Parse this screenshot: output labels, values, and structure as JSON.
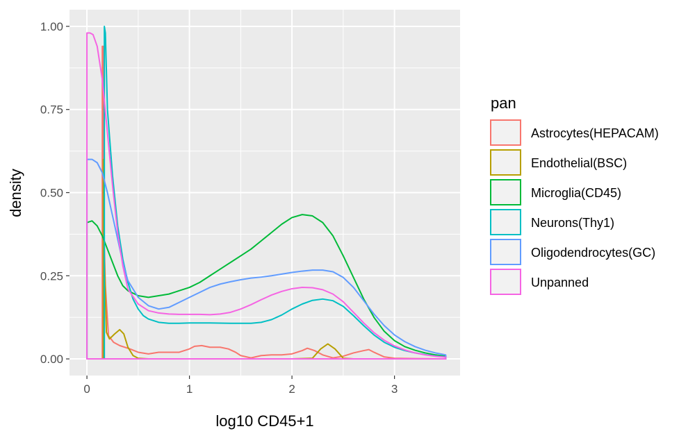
{
  "chart_data": {
    "type": "line",
    "xlabel": "log10 CD45+1",
    "ylabel": "density",
    "xlim": [
      -0.17,
      3.64
    ],
    "ylim": [
      -0.05,
      1.05
    ],
    "x_ticks": [
      0,
      1,
      2,
      3
    ],
    "x_tick_labels": [
      "0",
      "1",
      "2",
      "3"
    ],
    "y_ticks": [
      0,
      0.25,
      0.5,
      0.75,
      1.0
    ],
    "y_tick_labels": [
      "0.00",
      "0.25",
      "0.50",
      "0.75",
      "1.00"
    ],
    "grid": true,
    "panel_background": "#ebebeb",
    "legend": {
      "title": "pan",
      "position": "right",
      "entries": [
        "Astrocytes(HEPACAM)",
        "Endothelial(BSC)",
        "Microglia(CD45)",
        "Neurons(Thy1)",
        "Oligodendrocytes(GC)",
        "Unpanned"
      ]
    },
    "series": [
      {
        "name": "Astrocytes(HEPACAM)",
        "color": "#F8766D",
        "points": [
          [
            0.15,
            0
          ],
          [
            0.15,
            0.94
          ],
          [
            0.16,
            0.94
          ],
          [
            0.16,
            0.45
          ],
          [
            0.18,
            0.22
          ],
          [
            0.21,
            0.07
          ],
          [
            0.26,
            0.05
          ],
          [
            0.32,
            0.04
          ],
          [
            0.42,
            0.03
          ],
          [
            0.5,
            0.02
          ],
          [
            0.6,
            0.015
          ],
          [
            0.7,
            0.02
          ],
          [
            0.8,
            0.02
          ],
          [
            0.9,
            0.02
          ],
          [
            1.0,
            0.03
          ],
          [
            1.05,
            0.038
          ],
          [
            1.12,
            0.04
          ],
          [
            1.2,
            0.035
          ],
          [
            1.3,
            0.035
          ],
          [
            1.38,
            0.03
          ],
          [
            1.45,
            0.02
          ],
          [
            1.5,
            0.01
          ],
          [
            1.6,
            0.003
          ],
          [
            1.7,
            0.01
          ],
          [
            1.8,
            0.012
          ],
          [
            1.9,
            0.012
          ],
          [
            2.0,
            0.015
          ],
          [
            2.1,
            0.025
          ],
          [
            2.15,
            0.032
          ],
          [
            2.22,
            0.025
          ],
          [
            2.3,
            0.012
          ],
          [
            2.4,
            0.003
          ],
          [
            2.5,
            0.008
          ],
          [
            2.6,
            0.018
          ],
          [
            2.7,
            0.025
          ],
          [
            2.75,
            0.028
          ],
          [
            2.8,
            0.02
          ],
          [
            2.9,
            0.006
          ],
          [
            3.0,
            0.002
          ],
          [
            3.2,
            0.001
          ],
          [
            3.5,
            0
          ]
        ]
      },
      {
        "name": "Endothelial(BSC)",
        "color": "#B79F00",
        "points": [
          [
            0.16,
            0
          ],
          [
            0.16,
            0.6
          ],
          [
            0.17,
            0.3
          ],
          [
            0.19,
            0.08
          ],
          [
            0.22,
            0.06
          ],
          [
            0.27,
            0.075
          ],
          [
            0.32,
            0.088
          ],
          [
            0.36,
            0.075
          ],
          [
            0.4,
            0.035
          ],
          [
            0.45,
            0.01
          ],
          [
            0.5,
            0.002
          ],
          [
            0.6,
            0
          ],
          [
            1.0,
            0
          ],
          [
            1.5,
            0
          ],
          [
            2.0,
            0
          ],
          [
            2.2,
            0.002
          ],
          [
            2.28,
            0.03
          ],
          [
            2.35,
            0.045
          ],
          [
            2.42,
            0.03
          ],
          [
            2.5,
            0.002
          ],
          [
            2.6,
            0
          ],
          [
            3.5,
            0
          ]
        ]
      },
      {
        "name": "Microglia(CD45)",
        "color": "#00BA38",
        "points": [
          [
            0.0,
            0
          ],
          [
            0.0,
            0.41
          ],
          [
            0.05,
            0.415
          ],
          [
            0.1,
            0.4
          ],
          [
            0.15,
            0.37
          ],
          [
            0.2,
            0.33
          ],
          [
            0.25,
            0.29
          ],
          [
            0.3,
            0.25
          ],
          [
            0.35,
            0.22
          ],
          [
            0.4,
            0.205
          ],
          [
            0.5,
            0.19
          ],
          [
            0.6,
            0.185
          ],
          [
            0.7,
            0.19
          ],
          [
            0.8,
            0.195
          ],
          [
            0.9,
            0.205
          ],
          [
            1.0,
            0.215
          ],
          [
            1.1,
            0.23
          ],
          [
            1.2,
            0.25
          ],
          [
            1.3,
            0.27
          ],
          [
            1.4,
            0.29
          ],
          [
            1.5,
            0.31
          ],
          [
            1.6,
            0.33
          ],
          [
            1.7,
            0.355
          ],
          [
            1.8,
            0.38
          ],
          [
            1.9,
            0.405
          ],
          [
            2.0,
            0.425
          ],
          [
            2.1,
            0.434
          ],
          [
            2.2,
            0.43
          ],
          [
            2.3,
            0.41
          ],
          [
            2.4,
            0.37
          ],
          [
            2.5,
            0.31
          ],
          [
            2.6,
            0.245
          ],
          [
            2.7,
            0.18
          ],
          [
            2.8,
            0.125
          ],
          [
            2.9,
            0.083
          ],
          [
            3.0,
            0.055
          ],
          [
            3.1,
            0.037
          ],
          [
            3.2,
            0.026
          ],
          [
            3.3,
            0.018
          ],
          [
            3.4,
            0.012
          ],
          [
            3.5,
            0.008
          ]
        ]
      },
      {
        "name": "Neurons(Thy1)",
        "color": "#00BFC4",
        "points": [
          [
            0.17,
            0
          ],
          [
            0.17,
            1.0
          ],
          [
            0.18,
            0.98
          ],
          [
            0.2,
            0.75
          ],
          [
            0.25,
            0.55
          ],
          [
            0.3,
            0.4
          ],
          [
            0.35,
            0.3
          ],
          [
            0.4,
            0.23
          ],
          [
            0.45,
            0.18
          ],
          [
            0.5,
            0.15
          ],
          [
            0.55,
            0.13
          ],
          [
            0.6,
            0.12
          ],
          [
            0.7,
            0.11
          ],
          [
            0.8,
            0.107
          ],
          [
            0.9,
            0.107
          ],
          [
            1.0,
            0.108
          ],
          [
            1.2,
            0.108
          ],
          [
            1.4,
            0.107
          ],
          [
            1.6,
            0.107
          ],
          [
            1.7,
            0.11
          ],
          [
            1.8,
            0.118
          ],
          [
            1.9,
            0.132
          ],
          [
            2.0,
            0.15
          ],
          [
            2.1,
            0.165
          ],
          [
            2.2,
            0.176
          ],
          [
            2.3,
            0.18
          ],
          [
            2.4,
            0.175
          ],
          [
            2.5,
            0.158
          ],
          [
            2.6,
            0.13
          ],
          [
            2.7,
            0.1
          ],
          [
            2.8,
            0.072
          ],
          [
            2.9,
            0.05
          ],
          [
            3.0,
            0.035
          ],
          [
            3.1,
            0.025
          ],
          [
            3.2,
            0.018
          ],
          [
            3.3,
            0.013
          ],
          [
            3.4,
            0.009
          ],
          [
            3.5,
            0.006
          ]
        ]
      },
      {
        "name": "Oligodendrocytes(GC)",
        "color": "#619CFF",
        "points": [
          [
            0.0,
            0
          ],
          [
            0.0,
            0.6
          ],
          [
            0.05,
            0.6
          ],
          [
            0.1,
            0.59
          ],
          [
            0.15,
            0.56
          ],
          [
            0.2,
            0.5
          ],
          [
            0.25,
            0.43
          ],
          [
            0.3,
            0.36
          ],
          [
            0.35,
            0.29
          ],
          [
            0.4,
            0.235
          ],
          [
            0.5,
            0.185
          ],
          [
            0.6,
            0.16
          ],
          [
            0.7,
            0.15
          ],
          [
            0.8,
            0.155
          ],
          [
            0.9,
            0.17
          ],
          [
            1.0,
            0.185
          ],
          [
            1.1,
            0.2
          ],
          [
            1.2,
            0.215
          ],
          [
            1.3,
            0.225
          ],
          [
            1.4,
            0.232
          ],
          [
            1.5,
            0.238
          ],
          [
            1.6,
            0.243
          ],
          [
            1.7,
            0.246
          ],
          [
            1.8,
            0.25
          ],
          [
            1.9,
            0.255
          ],
          [
            2.0,
            0.26
          ],
          [
            2.1,
            0.264
          ],
          [
            2.2,
            0.267
          ],
          [
            2.3,
            0.267
          ],
          [
            2.4,
            0.262
          ],
          [
            2.5,
            0.245
          ],
          [
            2.6,
            0.215
          ],
          [
            2.7,
            0.175
          ],
          [
            2.8,
            0.135
          ],
          [
            2.9,
            0.1
          ],
          [
            3.0,
            0.072
          ],
          [
            3.1,
            0.052
          ],
          [
            3.2,
            0.037
          ],
          [
            3.3,
            0.026
          ],
          [
            3.4,
            0.018
          ],
          [
            3.5,
            0.012
          ]
        ]
      },
      {
        "name": "Unpanned",
        "color": "#F564E3",
        "points": [
          [
            0.0,
            0
          ],
          [
            0.0,
            0.98
          ],
          [
            0.03,
            0.98
          ],
          [
            0.06,
            0.975
          ],
          [
            0.1,
            0.94
          ],
          [
            0.15,
            0.84
          ],
          [
            0.2,
            0.68
          ],
          [
            0.25,
            0.52
          ],
          [
            0.3,
            0.38
          ],
          [
            0.35,
            0.28
          ],
          [
            0.4,
            0.21
          ],
          [
            0.5,
            0.165
          ],
          [
            0.6,
            0.145
          ],
          [
            0.7,
            0.138
          ],
          [
            0.8,
            0.135
          ],
          [
            0.9,
            0.134
          ],
          [
            1.0,
            0.134
          ],
          [
            1.1,
            0.134
          ],
          [
            1.2,
            0.133
          ],
          [
            1.3,
            0.135
          ],
          [
            1.4,
            0.14
          ],
          [
            1.5,
            0.15
          ],
          [
            1.6,
            0.163
          ],
          [
            1.7,
            0.178
          ],
          [
            1.8,
            0.192
          ],
          [
            1.9,
            0.203
          ],
          [
            2.0,
            0.211
          ],
          [
            2.1,
            0.215
          ],
          [
            2.2,
            0.214
          ],
          [
            2.3,
            0.208
          ],
          [
            2.4,
            0.195
          ],
          [
            2.5,
            0.172
          ],
          [
            2.6,
            0.14
          ],
          [
            2.7,
            0.108
          ],
          [
            2.8,
            0.079
          ],
          [
            2.9,
            0.056
          ],
          [
            3.0,
            0.039
          ],
          [
            3.1,
            0.027
          ],
          [
            3.2,
            0.018
          ],
          [
            3.3,
            0.012
          ],
          [
            3.4,
            0.008
          ],
          [
            3.5,
            0.005
          ]
        ]
      }
    ]
  }
}
